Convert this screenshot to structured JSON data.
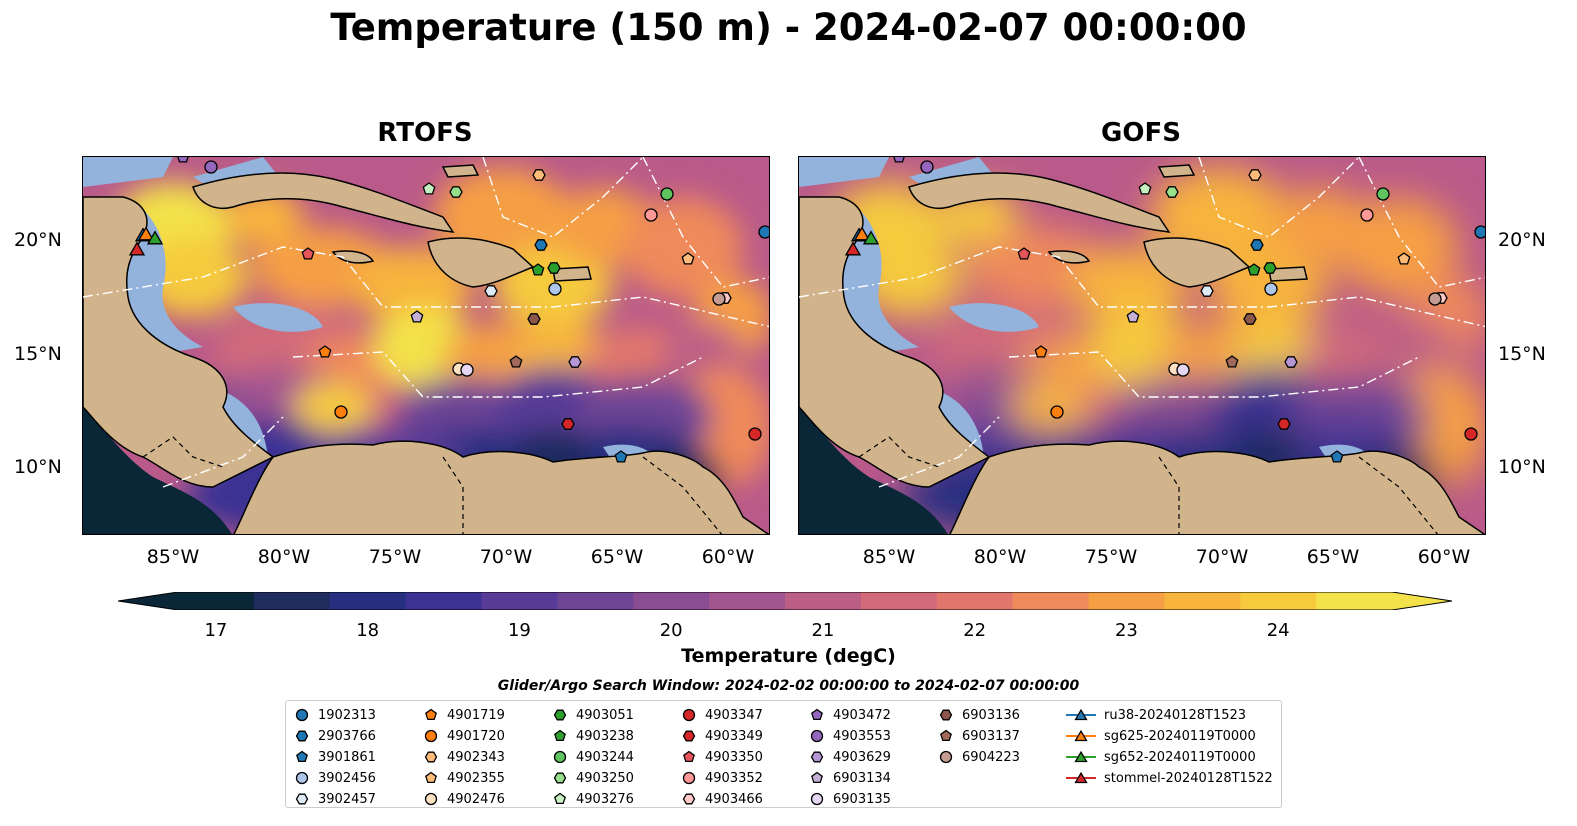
{
  "title": "Temperature (150 m) - 2024-02-07 00:00:00",
  "panels": [
    {
      "title": "RTOFS"
    },
    {
      "title": "GOFS"
    }
  ],
  "axes": {
    "lat_ticks": [
      "20°N",
      "15°N",
      "10°N"
    ],
    "lon_ticks": [
      "85°W",
      "80°W",
      "75°W",
      "70°W",
      "65°W",
      "60°W"
    ]
  },
  "colorbar": {
    "label": "Temperature (degC)",
    "ticks": [
      "17",
      "18",
      "19",
      "20",
      "21",
      "22",
      "23",
      "24"
    ],
    "range": [
      16.75,
      24.75
    ],
    "colors": [
      "#0a2738",
      "#1f2c5e",
      "#262f80",
      "#3b3293",
      "#573b97",
      "#6e4495",
      "#8a4d93",
      "#a35590",
      "#bb5f86",
      "#d16a7a",
      "#e1776c",
      "#ef8a5a",
      "#f59f45",
      "#f7b43c",
      "#f6ca3c",
      "#f3e24a"
    ]
  },
  "legend": {
    "title": "Glider/Argo Search Window: 2024-02-02 00:00:00 to 2024-02-07 00:00:00",
    "items": [
      {
        "label": "1902313",
        "marker": "circle",
        "color": "#1f77b4"
      },
      {
        "label": "2903766",
        "marker": "hexagon",
        "color": "#1f77b4"
      },
      {
        "label": "3901861",
        "marker": "pentagon",
        "color": "#1f77b4"
      },
      {
        "label": "3902456",
        "marker": "circle",
        "color": "#aec7e8"
      },
      {
        "label": "3902457",
        "marker": "hexagon",
        "color": "#deebf7"
      },
      {
        "label": "4901719",
        "marker": "pentagon",
        "color": "#ff7f0e"
      },
      {
        "label": "4901720",
        "marker": "circle",
        "color": "#ff7f0e"
      },
      {
        "label": "4902343",
        "marker": "hexagon",
        "color": "#ffbb78"
      },
      {
        "label": "4902355",
        "marker": "pentagon",
        "color": "#ffbb78"
      },
      {
        "label": "4902476",
        "marker": "circle",
        "color": "#fee0c2"
      },
      {
        "label": "4903051",
        "marker": "hexagon",
        "color": "#2ca02c"
      },
      {
        "label": "4903238",
        "marker": "pentagon",
        "color": "#2ca02c"
      },
      {
        "label": "4903244",
        "marker": "circle",
        "color": "#5fc35f"
      },
      {
        "label": "4903250",
        "marker": "hexagon",
        "color": "#98df8a"
      },
      {
        "label": "4903276",
        "marker": "pentagon",
        "color": "#c7f0c0"
      },
      {
        "label": "4903347",
        "marker": "circle",
        "color": "#d62728"
      },
      {
        "label": "4903349",
        "marker": "hexagon",
        "color": "#d62728"
      },
      {
        "label": "4903350",
        "marker": "pentagon",
        "color": "#e5555a"
      },
      {
        "label": "4903352",
        "marker": "circle",
        "color": "#ff9896"
      },
      {
        "label": "4903466",
        "marker": "hexagon",
        "color": "#ffc9c8"
      },
      {
        "label": "4903472",
        "marker": "pentagon",
        "color": "#9467bd"
      },
      {
        "label": "4903553",
        "marker": "circle",
        "color": "#9467bd"
      },
      {
        "label": "4903629",
        "marker": "hexagon",
        "color": "#b796d6"
      },
      {
        "label": "6903134",
        "marker": "pentagon",
        "color": "#c5b0d5"
      },
      {
        "label": "6903135",
        "marker": "circle",
        "color": "#e5d6f2"
      },
      {
        "label": "6903136",
        "marker": "hexagon",
        "color": "#8c564b"
      },
      {
        "label": "6903137",
        "marker": "pentagon",
        "color": "#a0695b"
      },
      {
        "label": "6904223",
        "marker": "circle",
        "color": "#c49c94"
      },
      {
        "label": "ru38-20240128T1523",
        "marker": "triangle",
        "color": "#1f77b4"
      },
      {
        "label": "sg625-20240119T0000",
        "marker": "triangle",
        "color": "#ff7f0e"
      },
      {
        "label": "sg652-20240119T0000",
        "marker": "triangle",
        "color": "#2ca02c"
      },
      {
        "label": "stommel-20240128T1522",
        "marker": "triangle",
        "color": "#d62728"
      }
    ]
  },
  "colors": {
    "land": "#d2b48c",
    "shelf": "#93b3dd",
    "ocean_default": "#b95a8a"
  }
}
